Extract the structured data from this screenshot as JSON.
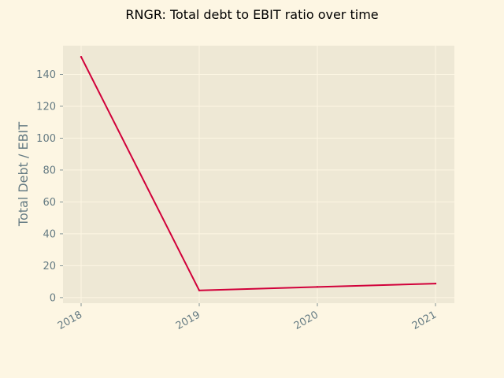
{
  "chart_data": {
    "type": "line",
    "title": "RNGR: Total debt to EBIT ratio over time",
    "xlabel": "",
    "ylabel": "Total Debt / EBIT",
    "x": [
      "2018",
      "2019",
      "2020",
      "2021"
    ],
    "series": [
      {
        "values": [
          151,
          4.5,
          6.7,
          8.8
        ],
        "color": "#d1003a"
      }
    ],
    "yticks": [
      0,
      20,
      40,
      60,
      80,
      100,
      120,
      140
    ],
    "ylim": [
      -3.5,
      158
    ],
    "grid": true,
    "legend": "none",
    "colors": {
      "background": "#fdf6e3",
      "plot_area": "#eee8d5",
      "grid": "#fdf6e3",
      "tick_text": "#657b83",
      "line": "#d1003a"
    }
  }
}
